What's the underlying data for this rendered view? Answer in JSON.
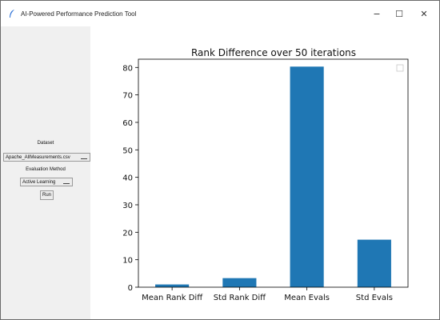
{
  "window": {
    "title": "AI-Powered Performance Prediction Tool",
    "controls": {
      "minimize": "−",
      "maximize": "☐",
      "close": "✕"
    }
  },
  "sidebar": {
    "dataset_label": "Dataset",
    "dataset_value": "Apache_AllMeasurements.csv",
    "evaluation_label": "Evaluation Method",
    "evaluation_value": "Active Learning",
    "run_label": "Run"
  },
  "colors": {
    "bar": "#1f77b4",
    "sidebar_bg": "#f0f0f0"
  },
  "chart_data": {
    "type": "bar",
    "title": "Rank Difference over 50 iterations",
    "categories": [
      "Mean Rank Diff",
      "Std Rank Diff",
      "Mean Evals",
      "Std Evals"
    ],
    "values": [
      1,
      3.3,
      80.3,
      17.3
    ],
    "ylim": [
      0,
      83
    ],
    "yticks": [
      0,
      10,
      20,
      30,
      40,
      50,
      60,
      70,
      80
    ],
    "xlabel": "",
    "ylabel": "",
    "grid": false,
    "legend": "top-right"
  }
}
